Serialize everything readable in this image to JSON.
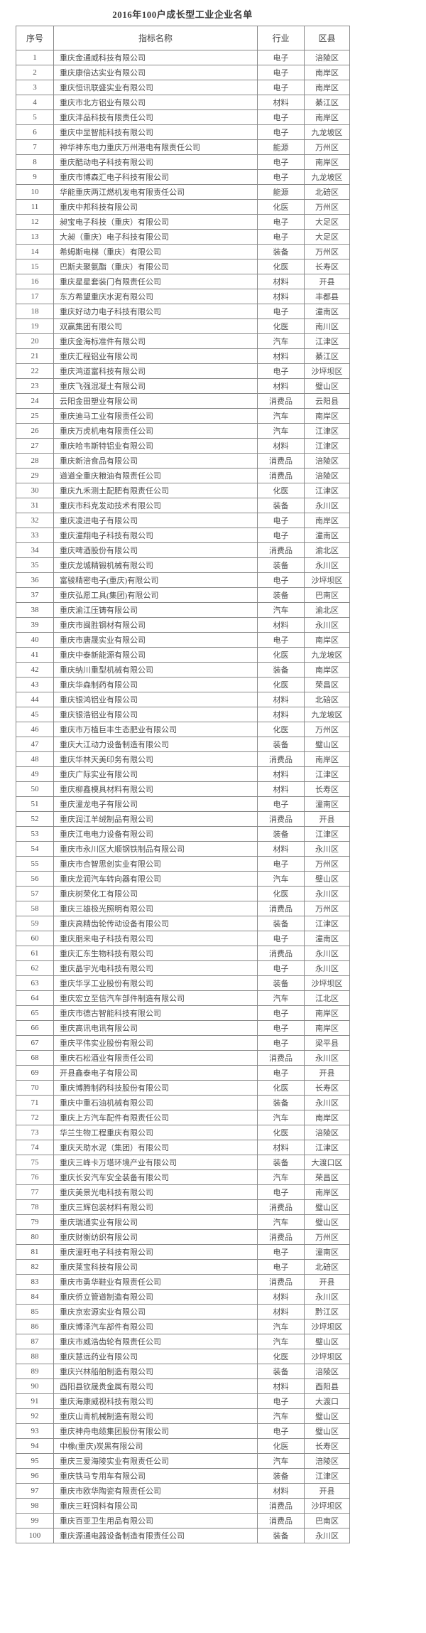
{
  "page": {
    "title": "2016年100户成长型工业企业名单"
  },
  "table": {
    "headers": {
      "no": "序号",
      "name": "指标名称",
      "industry": "行业",
      "district": "区县"
    },
    "rows": [
      {
        "no": "1",
        "name": "重庆金通威科技有限公司",
        "industry": "电子",
        "district": "涪陵区"
      },
      {
        "no": "2",
        "name": "重庆康倍达实业有限公司",
        "industry": "电子",
        "district": "南岸区"
      },
      {
        "no": "3",
        "name": "重庆恒讯联盛实业有限公司",
        "industry": "电子",
        "district": "南岸区"
      },
      {
        "no": "4",
        "name": "重庆市北方铝业有限公司",
        "industry": "材料",
        "district": "綦江区"
      },
      {
        "no": "5",
        "name": "重庆沣品科技有限责任公司",
        "industry": "电子",
        "district": "南岸区"
      },
      {
        "no": "6",
        "name": "重庆中显智能科技有限公司",
        "industry": "电子",
        "district": "九龙坡区"
      },
      {
        "no": "7",
        "name": "神华神东电力重庆万州港电有限责任公司",
        "industry": "能源",
        "district": "万州区"
      },
      {
        "no": "8",
        "name": "重庆酷动电子科技有限公司",
        "industry": "电子",
        "district": "南岸区"
      },
      {
        "no": "9",
        "name": "重庆市博森汇电子科技有限公司",
        "industry": "电子",
        "district": "九龙坡区"
      },
      {
        "no": "10",
        "name": "华能重庆两江燃机发电有限责任公司",
        "industry": "能源",
        "district": "北碚区"
      },
      {
        "no": "11",
        "name": "重庆中邦科技有限公司",
        "industry": "化医",
        "district": "万州区"
      },
      {
        "no": "12",
        "name": "昶宝电子科技（重庆）有限公司",
        "industry": "电子",
        "district": "大足区"
      },
      {
        "no": "13",
        "name": "大昶（重庆）电子科技有限公司",
        "industry": "电子",
        "district": "大足区"
      },
      {
        "no": "14",
        "name": "希姆斯电梯（重庆）有限公司",
        "industry": "装备",
        "district": "万州区"
      },
      {
        "no": "15",
        "name": "巴斯夫聚氨酯（重庆）有限公司",
        "industry": "化医",
        "district": "长寿区"
      },
      {
        "no": "16",
        "name": "重庆星星套装门有限责任公司",
        "industry": "材料",
        "district": "开县"
      },
      {
        "no": "17",
        "name": "东方希望重庆水泥有限公司",
        "industry": "材料",
        "district": "丰都县"
      },
      {
        "no": "18",
        "name": "重庆好动力电子科技有限公司",
        "industry": "电子",
        "district": "潼南区"
      },
      {
        "no": "19",
        "name": "双赢集团有限公司",
        "industry": "化医",
        "district": "南川区"
      },
      {
        "no": "20",
        "name": "重庆金海标准件有限公司",
        "industry": "汽车",
        "district": "江津区"
      },
      {
        "no": "21",
        "name": "重庆汇程铝业有限公司",
        "industry": "材料",
        "district": "綦江区"
      },
      {
        "no": "22",
        "name": "重庆鸿道富科技有限公司",
        "industry": "电子",
        "district": "沙坪坝区"
      },
      {
        "no": "23",
        "name": "重庆飞强混凝土有限公司",
        "industry": "材料",
        "district": "璧山区"
      },
      {
        "no": "24",
        "name": "云阳金田塑业有限公司",
        "industry": "消费品",
        "district": "云阳县"
      },
      {
        "no": "25",
        "name": "重庆迪马工业有限责任公司",
        "industry": "汽车",
        "district": "南岸区"
      },
      {
        "no": "26",
        "name": "重庆万虎机电有限责任公司",
        "industry": "汽车",
        "district": "江津区"
      },
      {
        "no": "27",
        "name": "重庆哈韦斯特铝业有限公司",
        "industry": "材料",
        "district": "江津区"
      },
      {
        "no": "28",
        "name": "重庆新涪食品有限公司",
        "industry": "消费品",
        "district": "涪陵区"
      },
      {
        "no": "29",
        "name": "道道全重庆粮油有限责任公司",
        "industry": "消费品",
        "district": "涪陵区"
      },
      {
        "no": "30",
        "name": "重庆九禾测土配肥有限责任公司",
        "industry": "化医",
        "district": "江津区"
      },
      {
        "no": "31",
        "name": "重庆市科克发动技术有限公司",
        "industry": "装备",
        "district": "永川区"
      },
      {
        "no": "32",
        "name": "重庆凌进电子有限公司",
        "industry": "电子",
        "district": "南岸区"
      },
      {
        "no": "33",
        "name": "重庆潼翔电子科技有限公司",
        "industry": "电子",
        "district": "潼南区"
      },
      {
        "no": "34",
        "name": "重庆啤酒股份有限公司",
        "industry": "消费品",
        "district": "渝北区"
      },
      {
        "no": "35",
        "name": "重庆龙城精锻机械有限公司",
        "industry": "装备",
        "district": "永川区"
      },
      {
        "no": "36",
        "name": "富骏精密电子(重庆)有限公司",
        "industry": "电子",
        "district": "沙坪坝区"
      },
      {
        "no": "37",
        "name": "重庆弘愿工具(集团)有限公司",
        "industry": "装备",
        "district": "巴南区"
      },
      {
        "no": "38",
        "name": "重庆渝江压铸有限公司",
        "industry": "汽车",
        "district": "渝北区"
      },
      {
        "no": "39",
        "name": "重庆市闽胜钢材有限公司",
        "industry": "材料",
        "district": "永川区"
      },
      {
        "no": "40",
        "name": "重庆市唐晟实业有限公司",
        "industry": "电子",
        "district": "南岸区"
      },
      {
        "no": "41",
        "name": "重庆中泰新能源有限公司",
        "industry": "化医",
        "district": "九龙坡区"
      },
      {
        "no": "42",
        "name": "重庆纳川重型机械有限公司",
        "industry": "装备",
        "district": "南岸区"
      },
      {
        "no": "43",
        "name": "重庆华森制药有限公司",
        "industry": "化医",
        "district": "荣昌区"
      },
      {
        "no": "44",
        "name": "重庆银鸿铝业有限公司",
        "industry": "材料",
        "district": "北碚区"
      },
      {
        "no": "45",
        "name": "重庆银浩铝业有限公司",
        "industry": "材料",
        "district": "九龙坡区"
      },
      {
        "no": "46",
        "name": "重庆市万植巨丰生态肥业有限公司",
        "industry": "化医",
        "district": "万州区"
      },
      {
        "no": "47",
        "name": "重庆大江动力设备制造有限公司",
        "industry": "装备",
        "district": "璧山区"
      },
      {
        "no": "48",
        "name": "重庆华林天美印务有限公司",
        "industry": "消费品",
        "district": "南岸区"
      },
      {
        "no": "49",
        "name": "重庆广际实业有限公司",
        "industry": "材料",
        "district": "江津区"
      },
      {
        "no": "50",
        "name": "重庆柳鑫模具材料有限公司",
        "industry": "材料",
        "district": "长寿区"
      },
      {
        "no": "51",
        "name": "重庆潼龙电子有限公司",
        "industry": "电子",
        "district": "潼南区"
      },
      {
        "no": "52",
        "name": "重庆润江羊绒制品有限公司",
        "industry": "消费品",
        "district": "开县"
      },
      {
        "no": "53",
        "name": "重庆江电电力设备有限公司",
        "industry": "装备",
        "district": "江津区"
      },
      {
        "no": "54",
        "name": "重庆市永川区大顺钢铁制品有限公司",
        "industry": "材料",
        "district": "永川区"
      },
      {
        "no": "55",
        "name": "重庆市合智思创实业有限公司",
        "industry": "电子",
        "district": "万州区"
      },
      {
        "no": "56",
        "name": "重庆龙润汽车转向器有限公司",
        "industry": "汽车",
        "district": "璧山区"
      },
      {
        "no": "57",
        "name": "重庆树荣化工有限公司",
        "industry": "化医",
        "district": "永川区"
      },
      {
        "no": "58",
        "name": "重庆三雄极光照明有限公司",
        "industry": "消费品",
        "district": "万州区"
      },
      {
        "no": "59",
        "name": "重庆高精齿轮传动设备有限公司",
        "industry": "装备",
        "district": "江津区"
      },
      {
        "no": "60",
        "name": "重庆朋来电子科技有限公司",
        "industry": "电子",
        "district": "潼南区"
      },
      {
        "no": "61",
        "name": "重庆汇东生物科技有限公司",
        "industry": "消费品",
        "district": "永川区"
      },
      {
        "no": "62",
        "name": "重庆晶宇光电科技有限公司",
        "industry": "电子",
        "district": "永川区"
      },
      {
        "no": "63",
        "name": "重庆华孚工业股份有限公司",
        "industry": "装备",
        "district": "沙坪坝区"
      },
      {
        "no": "64",
        "name": "重庆宏立至信汽车部件制造有限公司",
        "industry": "汽车",
        "district": "江北区"
      },
      {
        "no": "65",
        "name": "重庆市德古智能科技有限公司",
        "industry": "电子",
        "district": "南岸区"
      },
      {
        "no": "66",
        "name": "重庆高讯电讯有限公司",
        "industry": "电子",
        "district": "南岸区"
      },
      {
        "no": "67",
        "name": "重庆平伟实业股份有限公司",
        "industry": "电子",
        "district": "梁平县"
      },
      {
        "no": "68",
        "name": "重庆石松酒业有限责任公司",
        "industry": "消费品",
        "district": "永川区"
      },
      {
        "no": "69",
        "name": "开县鑫泰电子有限公司",
        "industry": "电子",
        "district": "开县"
      },
      {
        "no": "70",
        "name": "重庆博腾制药科技股份有限公司",
        "industry": "化医",
        "district": "长寿区"
      },
      {
        "no": "71",
        "name": "重庆中重石油机械有限公司",
        "industry": "装备",
        "district": "永川区"
      },
      {
        "no": "72",
        "name": "重庆上方汽车配件有限责任公司",
        "industry": "汽车",
        "district": "南岸区"
      },
      {
        "no": "73",
        "name": "华兰生物工程重庆有限公司",
        "industry": "化医",
        "district": "涪陵区"
      },
      {
        "no": "74",
        "name": "重庆天助水泥（集团）有限公司",
        "industry": "材料",
        "district": "江津区"
      },
      {
        "no": "75",
        "name": "重庆三峰卡万塔环境产业有限公司",
        "industry": "装备",
        "district": "大渡口区"
      },
      {
        "no": "76",
        "name": "重庆长安汽车安全装备有限公司",
        "industry": "汽车",
        "district": "荣昌区"
      },
      {
        "no": "77",
        "name": "重庆美景光电科技有限公司",
        "industry": "电子",
        "district": "南岸区"
      },
      {
        "no": "78",
        "name": "重庆三辉包装材料有限公司",
        "industry": "消费品",
        "district": "璧山区"
      },
      {
        "no": "79",
        "name": "重庆瑞通实业有限公司",
        "industry": "汽车",
        "district": "璧山区"
      },
      {
        "no": "80",
        "name": "重庆财衡纺织有限公司",
        "industry": "消费品",
        "district": "万州区"
      },
      {
        "no": "81",
        "name": "重庆潼旺电子科技有限公司",
        "industry": "电子",
        "district": "潼南区"
      },
      {
        "no": "82",
        "name": "重庆莱宝科技有限公司",
        "industry": "电子",
        "district": "北碚区"
      },
      {
        "no": "83",
        "name": "重庆市勇华鞋业有限责任公司",
        "industry": "消费品",
        "district": "开县"
      },
      {
        "no": "84",
        "name": "重庆侨立管道制造有限公司",
        "industry": "材料",
        "district": "永川区"
      },
      {
        "no": "85",
        "name": "重庆京宏源实业有限公司",
        "industry": "材料",
        "district": "黔江区"
      },
      {
        "no": "86",
        "name": "重庆博泽汽车部件有限公司",
        "industry": "汽车",
        "district": "沙坪坝区"
      },
      {
        "no": "87",
        "name": "重庆市威浩齿轮有限责任公司",
        "industry": "汽车",
        "district": "璧山区"
      },
      {
        "no": "88",
        "name": "重庆慧远药业有限公司",
        "industry": "化医",
        "district": "沙坪坝区"
      },
      {
        "no": "89",
        "name": "重庆兴林船舶制造有限公司",
        "industry": "装备",
        "district": "涪陵区"
      },
      {
        "no": "90",
        "name": "酉阳县钦晟贵金属有限公司",
        "industry": "材料",
        "district": "酉阳县"
      },
      {
        "no": "91",
        "name": "重庆海康威视科技有限公司",
        "industry": "电子",
        "district": "大渡口"
      },
      {
        "no": "92",
        "name": "重庆山青机械制造有限公司",
        "industry": "汽车",
        "district": "璧山区"
      },
      {
        "no": "93",
        "name": "重庆神舟电缆集团股份有限公司",
        "industry": "电子",
        "district": "璧山区"
      },
      {
        "no": "94",
        "name": "中橡(重庆)炭黑有限公司",
        "industry": "化医",
        "district": "长寿区"
      },
      {
        "no": "95",
        "name": "重庆三爱海陵实业有限责任公司",
        "industry": "汽车",
        "district": "涪陵区"
      },
      {
        "no": "96",
        "name": "重庆铁马专用车有限公司",
        "industry": "装备",
        "district": "江津区"
      },
      {
        "no": "97",
        "name": "重庆市欧华陶瓷有限责任公司",
        "industry": "材料",
        "district": "开县"
      },
      {
        "no": "98",
        "name": "重庆三旺饲料有限公司",
        "industry": "消费品",
        "district": "沙坪坝区"
      },
      {
        "no": "99",
        "name": "重庆百亚卫生用品有限公司",
        "industry": "消费品",
        "district": "巴南区"
      },
      {
        "no": "100",
        "name": "重庆源通电器设备制造有限责任公司",
        "industry": "装备",
        "district": "永川区"
      }
    ]
  }
}
